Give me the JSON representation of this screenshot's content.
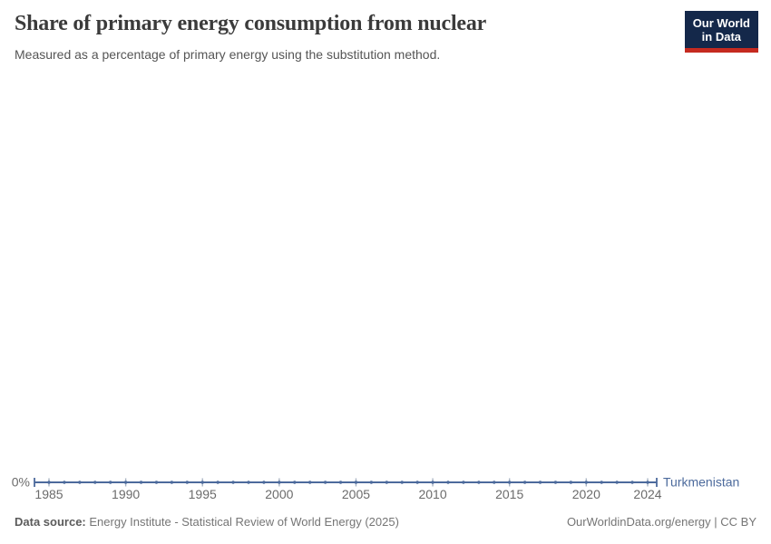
{
  "header": {
    "title": "Share of primary energy consumption from nuclear",
    "subtitle": "Measured as a percentage of primary energy using the substitution method.",
    "logo": {
      "line1": "Our World",
      "line2": "in Data",
      "bg_color": "#14284a",
      "accent_color": "#c52a20"
    }
  },
  "chart_data": {
    "type": "line",
    "title": "Share of primary energy consumption from nuclear",
    "xlabel": "",
    "ylabel": "",
    "grid": false,
    "legend_position": "end-of-line",
    "x": [
      1985,
      1986,
      1987,
      1988,
      1989,
      1990,
      1991,
      1992,
      1993,
      1994,
      1995,
      1996,
      1997,
      1998,
      1999,
      2000,
      2001,
      2002,
      2003,
      2004,
      2005,
      2006,
      2007,
      2008,
      2009,
      2010,
      2011,
      2012,
      2013,
      2014,
      2015,
      2016,
      2017,
      2018,
      2019,
      2020,
      2021,
      2022,
      2023,
      2024
    ],
    "series": [
      {
        "name": "Turkmenistan",
        "color": "#4C6A9C",
        "values": [
          0,
          0,
          0,
          0,
          0,
          0,
          0,
          0,
          0,
          0,
          0,
          0,
          0,
          0,
          0,
          0,
          0,
          0,
          0,
          0,
          0,
          0,
          0,
          0,
          0,
          0,
          0,
          0,
          0,
          0,
          0,
          0,
          0,
          0,
          0,
          0,
          0,
          0,
          0,
          0
        ]
      }
    ],
    "xticks": [
      1985,
      1990,
      1995,
      2000,
      2005,
      2010,
      2015,
      2020,
      2024
    ],
    "yticks": [
      "0%"
    ],
    "ylim": [
      0,
      0
    ],
    "xlim": [
      1985,
      2024
    ],
    "axis_color": "#a9b4c4",
    "tick_label_color": "#6b6b6b"
  },
  "footer": {
    "source_label": "Data source:",
    "source_text": "Energy Institute - Statistical Review of World Energy (2025)",
    "credit": "OurWorldinData.org/energy | CC BY"
  }
}
